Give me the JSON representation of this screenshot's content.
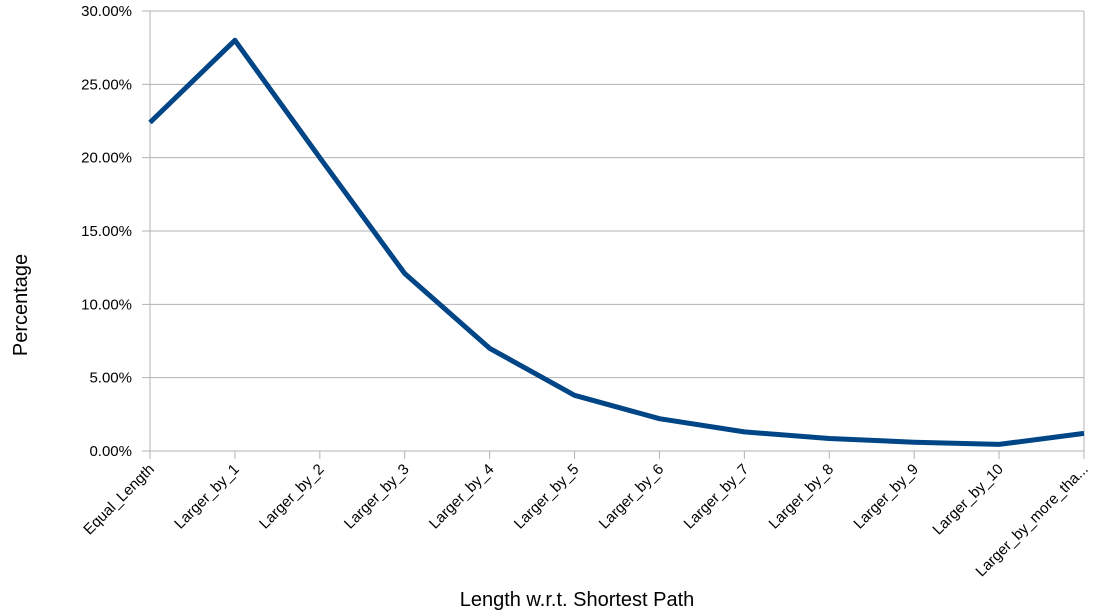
{
  "chart_data": {
    "type": "line",
    "categories": [
      "Equal_Length",
      "Larger_by_1",
      "Larger_by_2",
      "Larger_by_3",
      "Larger_by_4",
      "Larger_by_5",
      "Larger_by_6",
      "Larger_by_7",
      "Larger_by_8",
      "Larger_by_9",
      "Larger_by_10",
      "Larger_by_more_tha..."
    ],
    "series": [
      {
        "values": [
          22.4,
          28.0,
          20.0,
          12.1,
          7.0,
          3.8,
          2.2,
          1.3,
          0.85,
          0.6,
          0.45,
          1.2
        ],
        "color": "#004586"
      }
    ],
    "title": "",
    "xlabel": "Length w.r.t. Shortest Path",
    "ylabel": "Percentage",
    "ylim": [
      0,
      30
    ],
    "yticks": [
      0,
      5,
      10,
      15,
      20,
      25,
      30
    ],
    "ytick_labels": [
      "0.00%",
      "5.00%",
      "10.00%",
      "15.00%",
      "20.00%",
      "25.00%",
      "30.00%"
    ],
    "grid": true,
    "legend": "none"
  }
}
